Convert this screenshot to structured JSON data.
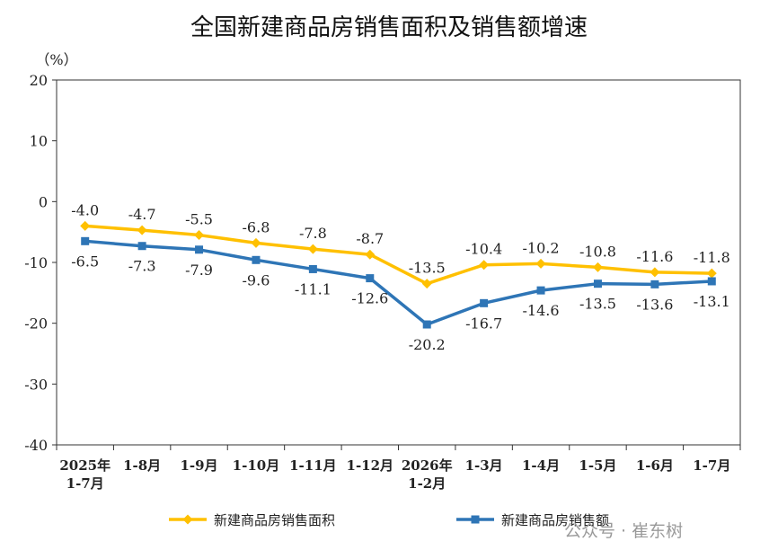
{
  "chart_data": {
    "type": "line",
    "title": "全国新建商品房销售面积及销售额增速",
    "unit_label": "（%）",
    "ylim": [
      -40,
      20
    ],
    "yticks": [
      20,
      10,
      0,
      -10,
      -20,
      -30,
      -40
    ],
    "categories": [
      "2025年 1-7月",
      "1-8月",
      "1-9月",
      "1-10月",
      "1-11月",
      "1-12月",
      "2026年 1-2月",
      "1-3月",
      "1-4月",
      "1-5月",
      "1-6月",
      "1-7月"
    ],
    "category_lines": [
      [
        "2025年",
        "1-7月"
      ],
      [
        "1-8月"
      ],
      [
        "1-9月"
      ],
      [
        "1-10月"
      ],
      [
        "1-11月"
      ],
      [
        "1-12月"
      ],
      [
        "2026年",
        "1-2月"
      ],
      [
        "1-3月"
      ],
      [
        "1-4月"
      ],
      [
        "1-5月"
      ],
      [
        "1-6月"
      ],
      [
        "1-7月"
      ]
    ],
    "series": [
      {
        "name": "新建商品房销售面积",
        "color": "#FFC000",
        "marker": "diamond",
        "label_position": "above",
        "values": [
          -4.0,
          -4.7,
          -5.5,
          -6.8,
          -7.8,
          -8.7,
          -13.5,
          -10.4,
          -10.2,
          -10.8,
          -11.6,
          -11.8
        ]
      },
      {
        "name": "新建商品房销售额",
        "color": "#2E75B6",
        "marker": "square",
        "label_position": "below",
        "values": [
          -6.5,
          -7.3,
          -7.9,
          -9.6,
          -11.1,
          -12.6,
          -20.2,
          -16.7,
          -14.6,
          -13.5,
          -13.6,
          -13.1
        ]
      }
    ],
    "grid": false,
    "legend_position": "bottom"
  },
  "watermark": "公众号 · 崔东树"
}
